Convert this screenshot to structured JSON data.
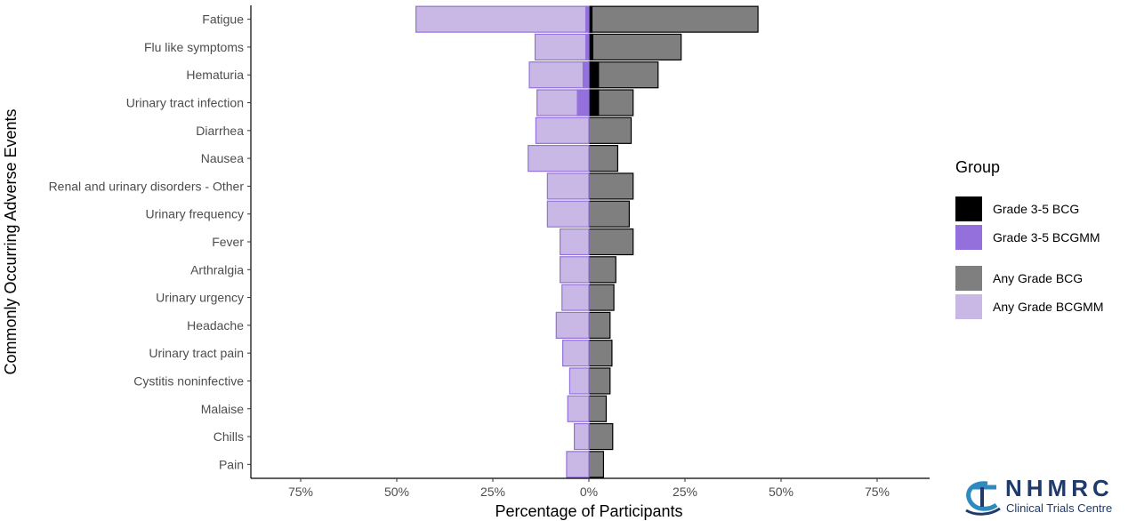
{
  "chart_data": {
    "type": "bar",
    "orientation": "horizontal-diverging",
    "xlabel": "Percentage of Participants",
    "ylabel": "Commonly Occurring Adverse Events",
    "xlim": [
      -0.88,
      0.88
    ],
    "x_ticks": [
      -0.75,
      -0.5,
      -0.25,
      0,
      0.25,
      0.5,
      0.75
    ],
    "x_tick_labels": [
      "75%",
      "50%",
      "25%",
      "0%",
      "25%",
      "50%",
      "75%"
    ],
    "grid": false,
    "legend_position": "right",
    "categories": [
      "Fatigue",
      "Flu like symptoms",
      "Hematuria",
      "Urinary tract infection",
      "Diarrhea",
      "Nausea",
      "Renal and urinary disorders - Other",
      "Urinary frequency",
      "Fever",
      "Arthralgia",
      "Urinary urgency",
      "Headache",
      "Urinary tract pain",
      "Cystitis noninfective",
      "Malaise",
      "Chills",
      "Pain"
    ],
    "series": [
      {
        "name": "Any Grade BCG",
        "side": "right",
        "color": "#7f7f7f",
        "values": [
          0.44,
          0.24,
          0.18,
          0.115,
          0.11,
          0.075,
          0.115,
          0.105,
          0.115,
          0.07,
          0.065,
          0.055,
          0.06,
          0.055,
          0.045,
          0.062,
          0.038
        ]
      },
      {
        "name": "Grade 3-5 BCG",
        "side": "right",
        "color": "#000000",
        "values": [
          0.008,
          0.01,
          0.025,
          0.025,
          0,
          0,
          0,
          0,
          0,
          0,
          0,
          0,
          0,
          0,
          0,
          0,
          0
        ]
      },
      {
        "name": "Any Grade BCGMM",
        "side": "left",
        "color": "#c9b8e6",
        "values": [
          0.45,
          0.14,
          0.155,
          0.135,
          0.138,
          0.158,
          0.108,
          0.108,
          0.075,
          0.075,
          0.07,
          0.085,
          0.068,
          0.05,
          0.055,
          0.038,
          0.058
        ]
      },
      {
        "name": "Grade 3-5 BCGMM",
        "side": "left",
        "color": "#9370db",
        "values": [
          0.008,
          0.008,
          0.015,
          0.03,
          0,
          0,
          0,
          0,
          0,
          0,
          0,
          0,
          0,
          0,
          0,
          0,
          0
        ]
      }
    ]
  },
  "legend": {
    "title": "Group",
    "items": [
      {
        "label": "Grade 3-5 BCG",
        "color": "#000000"
      },
      {
        "label": "Grade 3-5 BCGMM",
        "color": "#9370db"
      },
      {
        "label": "Any Grade BCG",
        "color": "#7f7f7f"
      },
      {
        "label": "Any Grade BCGMM",
        "color": "#c9b8e6"
      }
    ]
  },
  "logo": {
    "main": "NHMRC",
    "sub": "Clinical Trials Centre",
    "color": "#1f3a6b"
  }
}
